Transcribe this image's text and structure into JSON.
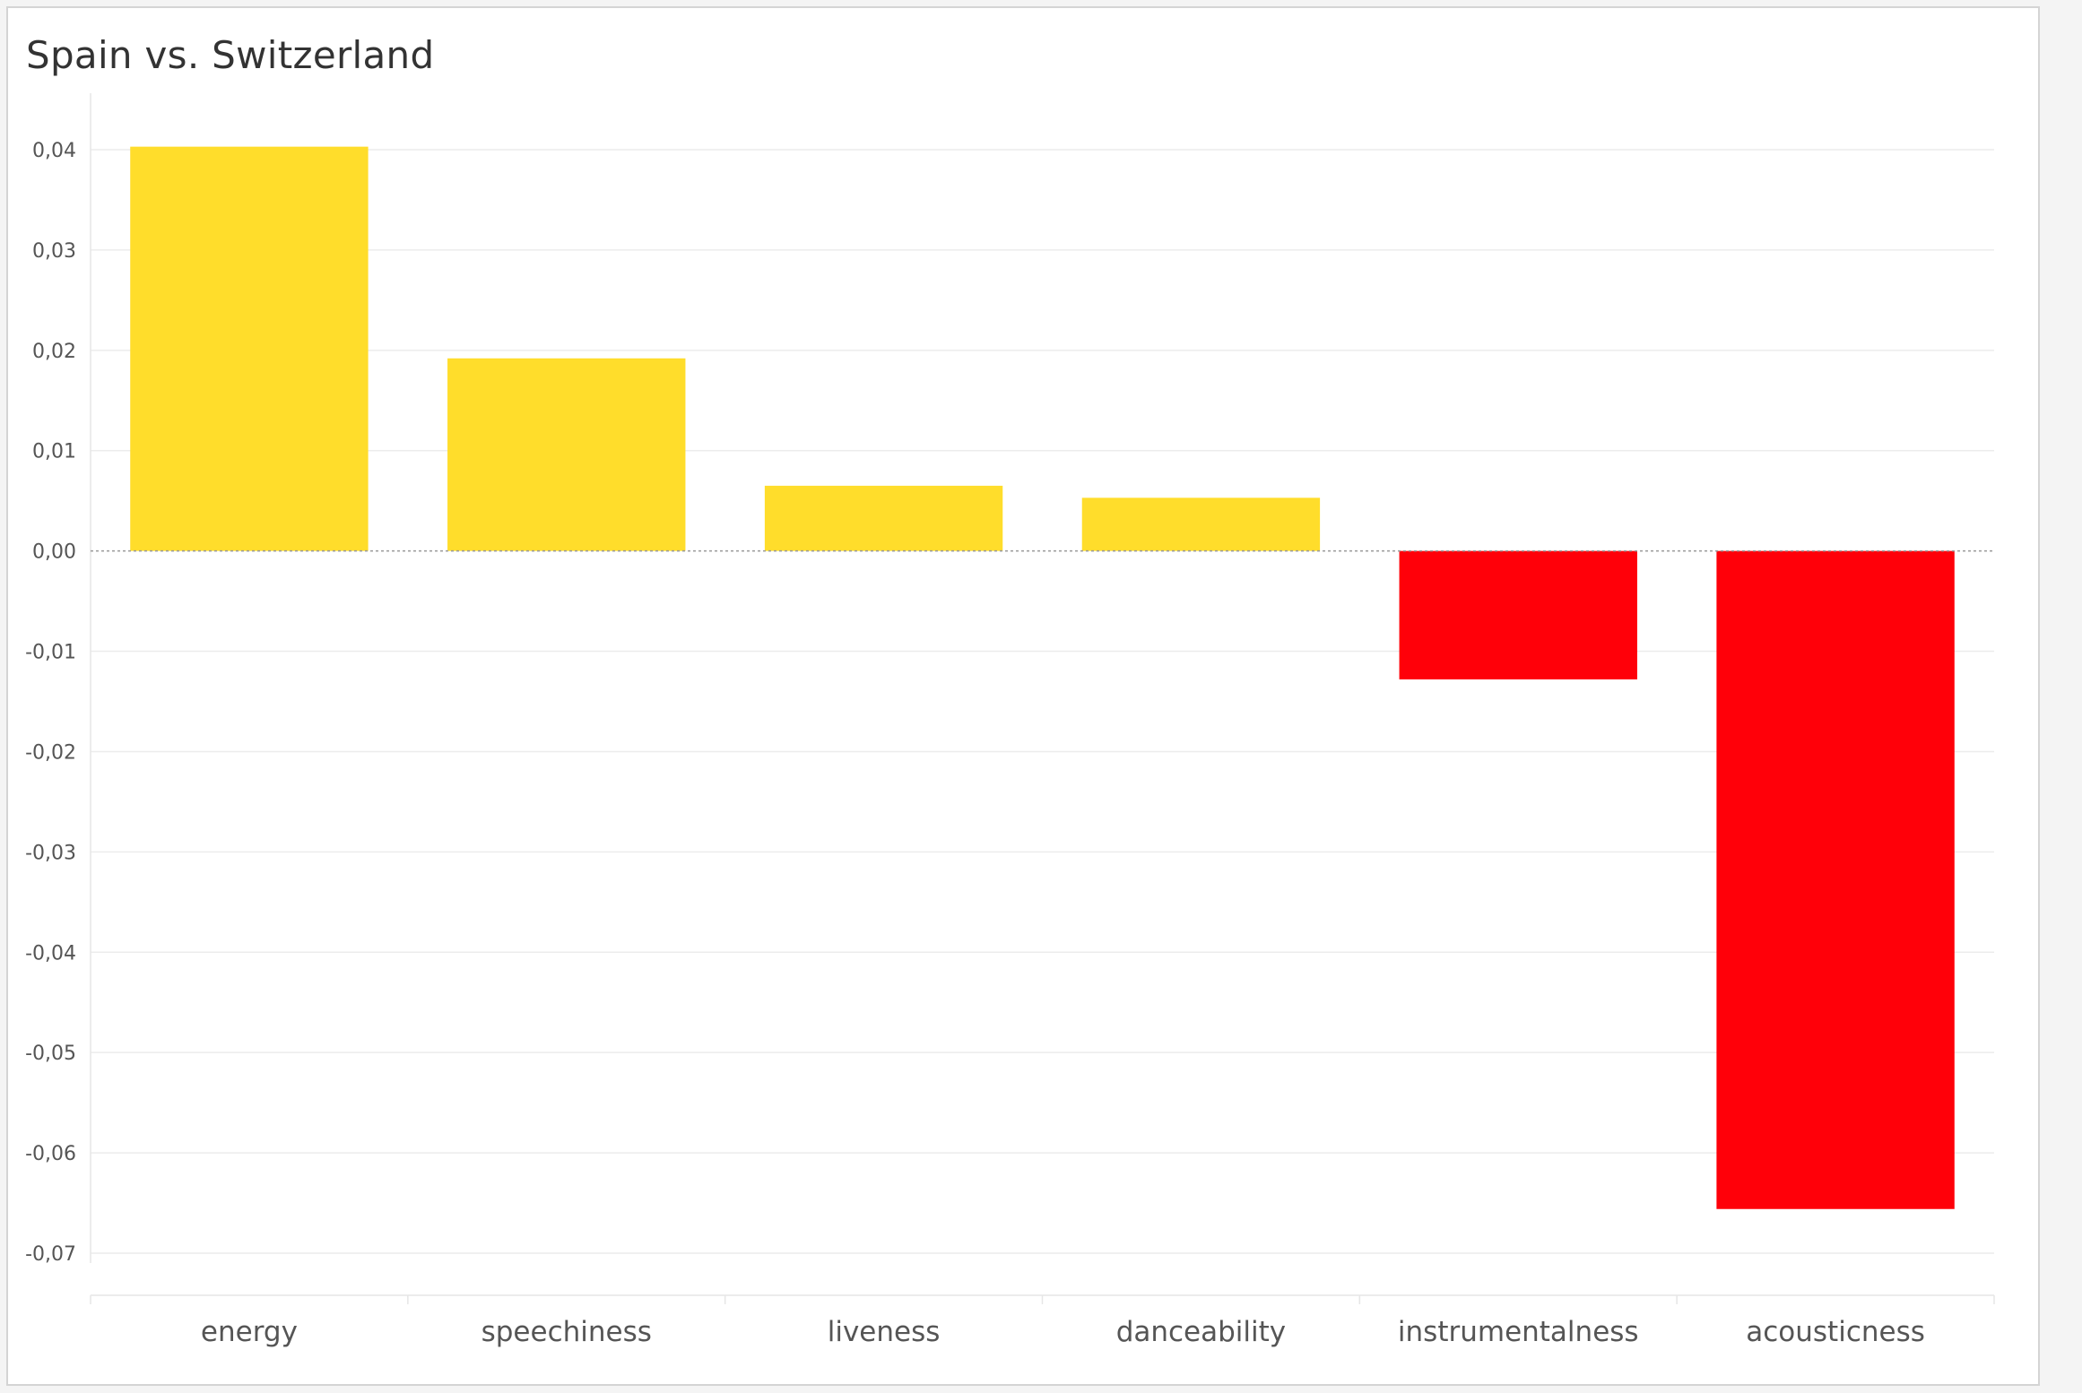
{
  "title": "Spain vs. Switzerland",
  "colors": {
    "positive": "#FFDD2B",
    "negative": "#FF0009"
  },
  "chart_data": {
    "type": "bar",
    "title": "Spain vs. Switzerland",
    "xlabel": "",
    "ylabel": "",
    "categories": [
      "energy",
      "speechiness",
      "liveness",
      "danceability",
      "instrumentalness",
      "acousticness"
    ],
    "values": [
      0.0403,
      0.0192,
      0.0065,
      0.0053,
      -0.0128,
      -0.0656
    ],
    "ylim": [
      -0.07,
      0.04
    ],
    "yticks": [
      0.04,
      0.03,
      0.02,
      0.01,
      0.0,
      -0.01,
      -0.02,
      -0.03,
      -0.04,
      -0.05,
      -0.06,
      -0.07
    ],
    "ytick_labels": [
      "0,04",
      "0,03",
      "0,02",
      "0,01",
      "0,00",
      "-0,01",
      "-0,02",
      "-0,03",
      "-0,04",
      "-0,05",
      "-0,06",
      "-0,07"
    ],
    "grid": true,
    "legend": "none"
  }
}
